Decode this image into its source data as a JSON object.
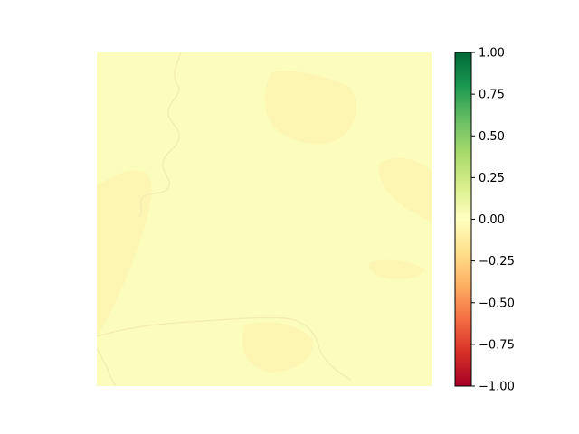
{
  "chart_data": {
    "type": "heatmap",
    "title": "",
    "xlabel": "",
    "ylabel": "",
    "axes_visible": false,
    "colormap": "RdYlGn",
    "value_range": [
      -1.0,
      1.0
    ],
    "typical_value": -0.03,
    "colorbar": {
      "position": "right",
      "ticks": [
        1.0,
        0.75,
        0.5,
        0.25,
        0.0,
        -0.25,
        -0.5,
        -0.75,
        -1.0
      ],
      "tick_labels": [
        "1.00",
        "0.75",
        "0.50",
        "0.25",
        "0.00",
        "−0.25",
        "−0.50",
        "−0.75",
        "−1.00"
      ],
      "stops": [
        {
          "value": -1.0,
          "color": "#a50026"
        },
        {
          "value": -0.8,
          "color": "#d73027"
        },
        {
          "value": -0.6,
          "color": "#f46d43"
        },
        {
          "value": -0.4,
          "color": "#fdae61"
        },
        {
          "value": -0.2,
          "color": "#fee08b"
        },
        {
          "value": 0.0,
          "color": "#ffffbf"
        },
        {
          "value": 0.2,
          "color": "#d9ef8b"
        },
        {
          "value": 0.4,
          "color": "#a6d96a"
        },
        {
          "value": 0.6,
          "color": "#66bd63"
        },
        {
          "value": 0.8,
          "color": "#1a9850"
        },
        {
          "value": 1.0,
          "color": "#006837"
        }
      ]
    },
    "image_colors": {
      "base": "#fcfcbc",
      "slightly_negative": "#fdf4b2",
      "texture_line": "#f2ebb0"
    }
  }
}
